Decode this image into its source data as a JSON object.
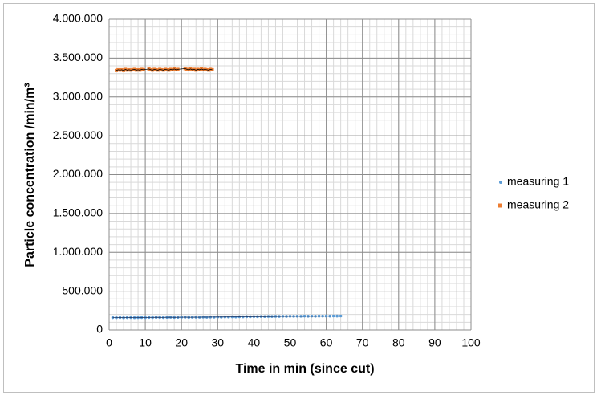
{
  "chart_data": {
    "type": "scatter",
    "xlabel": "Time in min (since cut)",
    "ylabel": "Particle concentration /min/m³",
    "xlim": [
      0,
      100
    ],
    "xticks": [
      0,
      10,
      20,
      30,
      40,
      50,
      60,
      70,
      80,
      90,
      100
    ],
    "ylim": [
      0,
      4000000
    ],
    "yticks": [
      0,
      {
        "value": 500000,
        "label": "500.000"
      },
      {
        "value": 1000000,
        "label": "1.000.000"
      },
      {
        "value": 1500000,
        "label": "1.500.000"
      },
      {
        "value": 2000000,
        "label": "2.000.000"
      },
      {
        "value": 2500000,
        "label": "2.500.000"
      },
      {
        "value": 3000000,
        "label": "3.000.000"
      },
      {
        "value": 3500000,
        "label": "3.500.000"
      },
      {
        "value": 4000000,
        "label": "4.000.000"
      }
    ],
    "minor_xstep": 2,
    "minor_ystep": 100000,
    "grid": true,
    "legend": "right",
    "series": [
      {
        "name": "measuring 1",
        "color": "#5b9bd5",
        "line_color": "#1f3864",
        "x": [
          1,
          2,
          3,
          4,
          5,
          6,
          7,
          8,
          9,
          10,
          11,
          12,
          13,
          14,
          15,
          16,
          17,
          18,
          19,
          20,
          21,
          22,
          23,
          24,
          25,
          26,
          27,
          28,
          29,
          30,
          31,
          32,
          33,
          34,
          35,
          36,
          37,
          38,
          39,
          40,
          41,
          42,
          43,
          44,
          45,
          46,
          47,
          48,
          49,
          50,
          51,
          52,
          53,
          54,
          55,
          56,
          57,
          58,
          59,
          60,
          61,
          62,
          63,
          64
        ],
        "values": [
          160000,
          159000,
          160000,
          158000,
          160000,
          161000,
          159000,
          160000,
          161000,
          160000,
          162000,
          161000,
          163000,
          162000,
          161000,
          163000,
          164000,
          162000,
          163000,
          164000,
          165000,
          163000,
          164000,
          165000,
          164000,
          166000,
          165000,
          167000,
          166000,
          168000,
          167000,
          169000,
          168000,
          170000,
          169000,
          171000,
          170000,
          172000,
          171000,
          173000,
          172000,
          174000,
          173000,
          175000,
          174000,
          176000,
          175000,
          177000,
          176000,
          178000,
          177000,
          178000,
          177000,
          179000,
          178000,
          179000,
          178000,
          180000,
          179000,
          180000,
          179000,
          181000,
          180000,
          181000
        ]
      },
      {
        "name": "measuring 2",
        "color": "#ed7d31",
        "line_color": "#000000",
        "x": [
          2,
          2.5,
          3,
          3.5,
          4,
          4.5,
          5,
          5.5,
          6,
          6.5,
          7,
          7.5,
          8,
          8.5,
          9,
          9.5,
          11,
          11.5,
          12,
          12.5,
          13,
          13.5,
          14,
          14.5,
          15,
          15.5,
          16,
          16.5,
          17,
          17.5,
          18,
          18.5,
          19,
          21,
          21.5,
          22,
          22.5,
          23,
          23.5,
          24,
          24.5,
          25,
          25.5,
          26,
          26.5,
          27,
          27.5,
          28,
          28.5
        ],
        "values": [
          3340000,
          3350000,
          3345000,
          3350000,
          3340000,
          3355000,
          3345000,
          3350000,
          3345000,
          3350000,
          3355000,
          3345000,
          3350000,
          3345000,
          3355000,
          3350000,
          3360000,
          3350000,
          3345000,
          3355000,
          3350000,
          3345000,
          3355000,
          3350000,
          3345000,
          3355000,
          3350000,
          3345000,
          3355000,
          3350000,
          3360000,
          3350000,
          3355000,
          3365000,
          3355000,
          3350000,
          3360000,
          3350000,
          3355000,
          3345000,
          3355000,
          3350000,
          3360000,
          3350000,
          3355000,
          3350000,
          3345000,
          3355000,
          3350000
        ]
      }
    ]
  }
}
